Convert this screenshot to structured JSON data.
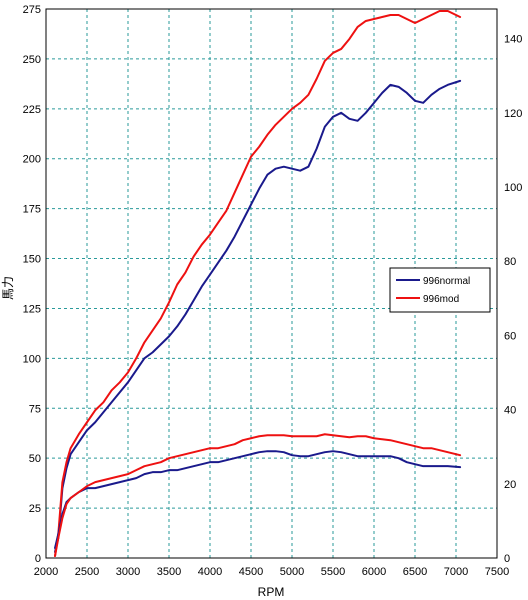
{
  "chart_data": {
    "type": "line",
    "xlabel": "RPM",
    "ylabel": "馬力",
    "xlim": [
      2000,
      7500
    ],
    "ylim_left": [
      0,
      275
    ],
    "ylim_right": [
      0,
      148
    ],
    "x_ticks": [
      "2000",
      "2500",
      "3000",
      "3500",
      "4000",
      "4500",
      "5000",
      "5500",
      "6000",
      "6500",
      "7000",
      "7500"
    ],
    "y_left_ticks": [
      "0",
      "25",
      "50",
      "75",
      "100",
      "125",
      "150",
      "175",
      "200",
      "225",
      "250",
      "275"
    ],
    "y_right_ticks": [
      "0",
      "20",
      "40",
      "60",
      "80",
      "100",
      "120",
      "140"
    ],
    "grid": true,
    "legend_position": "right",
    "series": [
      {
        "name": "996normal",
        "color": "#1a1a8c",
        "axis": "left",
        "points": [
          [
            2110,
            3
          ],
          [
            2150,
            10
          ],
          [
            2200,
            35
          ],
          [
            2250,
            45
          ],
          [
            2300,
            52
          ],
          [
            2400,
            58
          ],
          [
            2500,
            64
          ],
          [
            2600,
            68
          ],
          [
            2700,
            73
          ],
          [
            2800,
            78
          ],
          [
            2900,
            83
          ],
          [
            3000,
            88
          ],
          [
            3100,
            94
          ],
          [
            3200,
            100
          ],
          [
            3300,
            103
          ],
          [
            3400,
            107
          ],
          [
            3500,
            111
          ],
          [
            3600,
            116
          ],
          [
            3700,
            122
          ],
          [
            3800,
            129
          ],
          [
            3900,
            136
          ],
          [
            4000,
            142
          ],
          [
            4100,
            148
          ],
          [
            4200,
            154
          ],
          [
            4300,
            161
          ],
          [
            4400,
            169
          ],
          [
            4500,
            177
          ],
          [
            4600,
            185
          ],
          [
            4700,
            192
          ],
          [
            4800,
            195
          ],
          [
            4900,
            196
          ],
          [
            5000,
            195
          ],
          [
            5100,
            194
          ],
          [
            5200,
            196
          ],
          [
            5300,
            205
          ],
          [
            5400,
            216
          ],
          [
            5500,
            221
          ],
          [
            5600,
            223
          ],
          [
            5700,
            220
          ],
          [
            5800,
            219
          ],
          [
            5900,
            223
          ],
          [
            6000,
            228
          ],
          [
            6100,
            233
          ],
          [
            6200,
            237
          ],
          [
            6300,
            236
          ],
          [
            6400,
            233
          ],
          [
            6500,
            229
          ],
          [
            6600,
            228
          ],
          [
            6700,
            232
          ],
          [
            6800,
            235
          ],
          [
            6900,
            237
          ],
          [
            7050,
            239
          ]
        ]
      },
      {
        "name": "996mod",
        "color": "#ee1111",
        "axis": "left",
        "points": [
          [
            2110,
            1
          ],
          [
            2150,
            12
          ],
          [
            2200,
            38
          ],
          [
            2250,
            48
          ],
          [
            2300,
            55
          ],
          [
            2400,
            62
          ],
          [
            2500,
            68
          ],
          [
            2600,
            74
          ],
          [
            2700,
            78
          ],
          [
            2800,
            84
          ],
          [
            2900,
            88
          ],
          [
            3000,
            93
          ],
          [
            3100,
            100
          ],
          [
            3200,
            108
          ],
          [
            3300,
            114
          ],
          [
            3400,
            120
          ],
          [
            3500,
            128
          ],
          [
            3600,
            137
          ],
          [
            3700,
            143
          ],
          [
            3800,
            151
          ],
          [
            3900,
            157
          ],
          [
            4000,
            162
          ],
          [
            4100,
            168
          ],
          [
            4200,
            174
          ],
          [
            4300,
            183
          ],
          [
            4400,
            192
          ],
          [
            4500,
            201
          ],
          [
            4600,
            206
          ],
          [
            4700,
            212
          ],
          [
            4800,
            217
          ],
          [
            4900,
            221
          ],
          [
            5000,
            225
          ],
          [
            5100,
            228
          ],
          [
            5200,
            232
          ],
          [
            5300,
            240
          ],
          [
            5400,
            249
          ],
          [
            5500,
            253
          ],
          [
            5600,
            255
          ],
          [
            5700,
            260
          ],
          [
            5800,
            266
          ],
          [
            5900,
            269
          ],
          [
            6000,
            270
          ],
          [
            6100,
            271
          ],
          [
            6200,
            272
          ],
          [
            6300,
            272
          ],
          [
            6400,
            270
          ],
          [
            6500,
            268
          ],
          [
            6600,
            270
          ],
          [
            6700,
            272
          ],
          [
            6800,
            274
          ],
          [
            6900,
            274
          ],
          [
            7000,
            272
          ],
          [
            7050,
            271
          ]
        ]
      },
      {
        "name": "996normal",
        "color": "#1a1a8c",
        "axis": "left",
        "points": [
          [
            2110,
            5
          ],
          [
            2150,
            12
          ],
          [
            2200,
            22
          ],
          [
            2250,
            28
          ],
          [
            2300,
            30
          ],
          [
            2400,
            33
          ],
          [
            2500,
            35
          ],
          [
            2600,
            35
          ],
          [
            2700,
            36
          ],
          [
            2800,
            37
          ],
          [
            2900,
            38
          ],
          [
            3000,
            39
          ],
          [
            3100,
            40
          ],
          [
            3200,
            42
          ],
          [
            3300,
            43
          ],
          [
            3400,
            43
          ],
          [
            3500,
            44
          ],
          [
            3600,
            44
          ],
          [
            3700,
            45
          ],
          [
            3800,
            46
          ],
          [
            3900,
            47
          ],
          [
            4000,
            48
          ],
          [
            4100,
            48
          ],
          [
            4200,
            49
          ],
          [
            4300,
            50
          ],
          [
            4400,
            51
          ],
          [
            4500,
            52
          ],
          [
            4600,
            53
          ],
          [
            4700,
            53.5
          ],
          [
            4800,
            53.5
          ],
          [
            4900,
            53
          ],
          [
            5000,
            51.5
          ],
          [
            5100,
            51
          ],
          [
            5200,
            51
          ],
          [
            5300,
            52
          ],
          [
            5400,
            53
          ],
          [
            5500,
            53.5
          ],
          [
            5600,
            53
          ],
          [
            5700,
            52
          ],
          [
            5800,
            51
          ],
          [
            5900,
            51
          ],
          [
            6000,
            51
          ],
          [
            6100,
            51
          ],
          [
            6200,
            51
          ],
          [
            6300,
            50
          ],
          [
            6400,
            48
          ],
          [
            6500,
            47
          ],
          [
            6600,
            46
          ],
          [
            6700,
            46
          ],
          [
            6800,
            46
          ],
          [
            6900,
            46
          ],
          [
            7050,
            45.5
          ]
        ]
      },
      {
        "name": "996mod",
        "color": "#ee1111",
        "axis": "left",
        "points": [
          [
            2110,
            1
          ],
          [
            2150,
            10
          ],
          [
            2200,
            20
          ],
          [
            2250,
            27
          ],
          [
            2300,
            30
          ],
          [
            2400,
            33
          ],
          [
            2500,
            36
          ],
          [
            2600,
            38
          ],
          [
            2700,
            39
          ],
          [
            2800,
            40
          ],
          [
            2900,
            41
          ],
          [
            3000,
            42
          ],
          [
            3100,
            44
          ],
          [
            3200,
            46
          ],
          [
            3300,
            47
          ],
          [
            3400,
            48
          ],
          [
            3500,
            50
          ],
          [
            3600,
            51
          ],
          [
            3700,
            52
          ],
          [
            3800,
            53
          ],
          [
            3900,
            54
          ],
          [
            4000,
            55
          ],
          [
            4100,
            55
          ],
          [
            4200,
            56
          ],
          [
            4300,
            57
          ],
          [
            4400,
            59
          ],
          [
            4500,
            60
          ],
          [
            4600,
            61
          ],
          [
            4700,
            61.5
          ],
          [
            4800,
            61.5
          ],
          [
            4900,
            61.5
          ],
          [
            5000,
            61
          ],
          [
            5100,
            61
          ],
          [
            5200,
            61
          ],
          [
            5300,
            61
          ],
          [
            5400,
            62
          ],
          [
            5500,
            61.5
          ],
          [
            5600,
            61
          ],
          [
            5700,
            60.5
          ],
          [
            5800,
            61
          ],
          [
            5900,
            61
          ],
          [
            6000,
            60
          ],
          [
            6100,
            59.5
          ],
          [
            6200,
            59
          ],
          [
            6300,
            58
          ],
          [
            6400,
            57
          ],
          [
            6500,
            56
          ],
          [
            6600,
            55
          ],
          [
            6700,
            55
          ],
          [
            6800,
            54
          ],
          [
            6900,
            53
          ],
          [
            7000,
            52
          ],
          [
            7050,
            51.5
          ]
        ]
      }
    ]
  },
  "legend": {
    "items": [
      {
        "label": "996normal",
        "color": "#1a1a8c"
      },
      {
        "label": "996mod",
        "color": "#ee1111"
      }
    ]
  }
}
